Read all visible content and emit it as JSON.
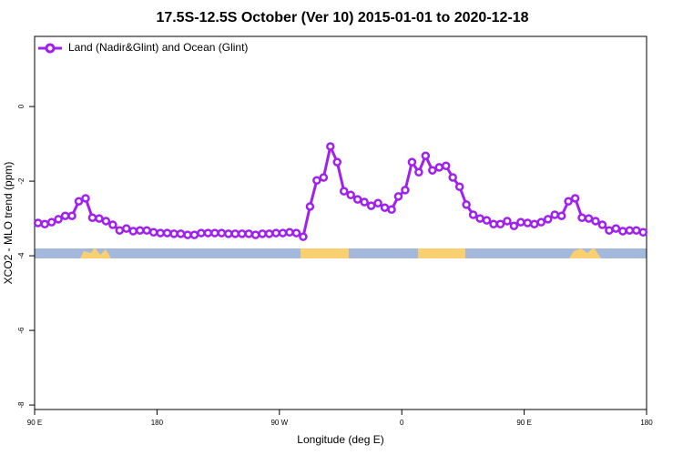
{
  "chart_data": {
    "type": "line",
    "title": "17.5S-12.5S October (Ver 10)   2015-01-01 to 2020-12-18",
    "xlabel": "Longitude (deg E)",
    "ylabel": "XCO2 - MLO trend (ppm)",
    "xlim": [
      90,
      540
    ],
    "ylim": [
      -8.12,
      1.88
    ],
    "xticks": [
      {
        "value": 90,
        "label": "90 E"
      },
      {
        "value": 180,
        "label": "180"
      },
      {
        "value": 270,
        "label": "90 W"
      },
      {
        "value": 360,
        "label": "0"
      },
      {
        "value": 450,
        "label": "90 E"
      },
      {
        "value": 540,
        "label": "180"
      }
    ],
    "yticks": [
      0,
      -2,
      -4,
      -6,
      -8
    ],
    "legend": "upper left",
    "x": [
      92.5,
      97.5,
      102.5,
      107.5,
      112.5,
      117.5,
      122.5,
      127.5,
      132.5,
      137.5,
      142.5,
      147.5,
      152.5,
      157.5,
      162.5,
      167.5,
      172.5,
      177.5,
      182.5,
      187.5,
      192.5,
      197.5,
      202.5,
      207.5,
      212.5,
      217.5,
      222.5,
      227.5,
      232.5,
      237.5,
      242.5,
      247.5,
      252.5,
      257.5,
      262.5,
      267.5,
      272.5,
      277.5,
      282.5,
      287.5,
      292.5,
      297.5,
      302.5,
      307.5,
      312.5,
      317.5,
      322.5,
      327.5,
      332.5,
      337.5,
      342.5,
      347.5,
      352.5,
      357.5,
      362.5,
      367.5,
      372.5,
      377.5,
      382.5,
      387.5,
      392.5,
      397.5,
      402.5,
      407.5,
      412.5,
      417.5,
      422.5,
      427.5,
      432.5,
      437.5,
      442.5,
      447.5,
      452.5,
      457.5,
      462.5,
      467.5,
      472.5,
      477.5,
      482.5,
      487.5,
      492.5,
      497.5,
      502.5,
      507.5,
      512.5,
      517.5,
      522.5,
      527.5,
      532.5,
      537.5
    ],
    "series": [
      {
        "name": "Land (Nadir&Glint) and Ocean (Glint)",
        "color": "#a020f0",
        "values": [
          -3.12,
          -3.15,
          -3.1,
          -3.02,
          -2.93,
          -2.93,
          -2.54,
          -2.46,
          -2.98,
          -3.0,
          -3.07,
          -3.17,
          -3.32,
          -3.27,
          -3.34,
          -3.32,
          -3.32,
          -3.37,
          -3.39,
          -3.39,
          -3.41,
          -3.41,
          -3.44,
          -3.44,
          -3.39,
          -3.39,
          -3.39,
          -3.39,
          -3.41,
          -3.41,
          -3.41,
          -3.41,
          -3.44,
          -3.41,
          -3.41,
          -3.39,
          -3.39,
          -3.37,
          -3.39,
          -3.49,
          -2.68,
          -1.98,
          -1.9,
          -1.07,
          -1.49,
          -2.27,
          -2.37,
          -2.49,
          -2.56,
          -2.66,
          -2.59,
          -2.71,
          -2.76,
          -2.41,
          -2.24,
          -1.49,
          -1.76,
          -1.32,
          -1.71,
          -1.63,
          -1.59,
          -1.9,
          -2.15,
          -2.63,
          -2.9,
          -3.0,
          -3.05,
          -3.15,
          -3.15,
          -3.07,
          -3.2,
          -3.1,
          -3.12,
          -3.15,
          -3.1,
          -3.02,
          -2.9,
          -2.93,
          -2.54,
          -2.46,
          -2.98,
          -3.0,
          -3.07,
          -3.17,
          -3.32,
          -3.27,
          -3.34,
          -3.32,
          -3.32,
          -3.37
        ]
      }
    ]
  }
}
